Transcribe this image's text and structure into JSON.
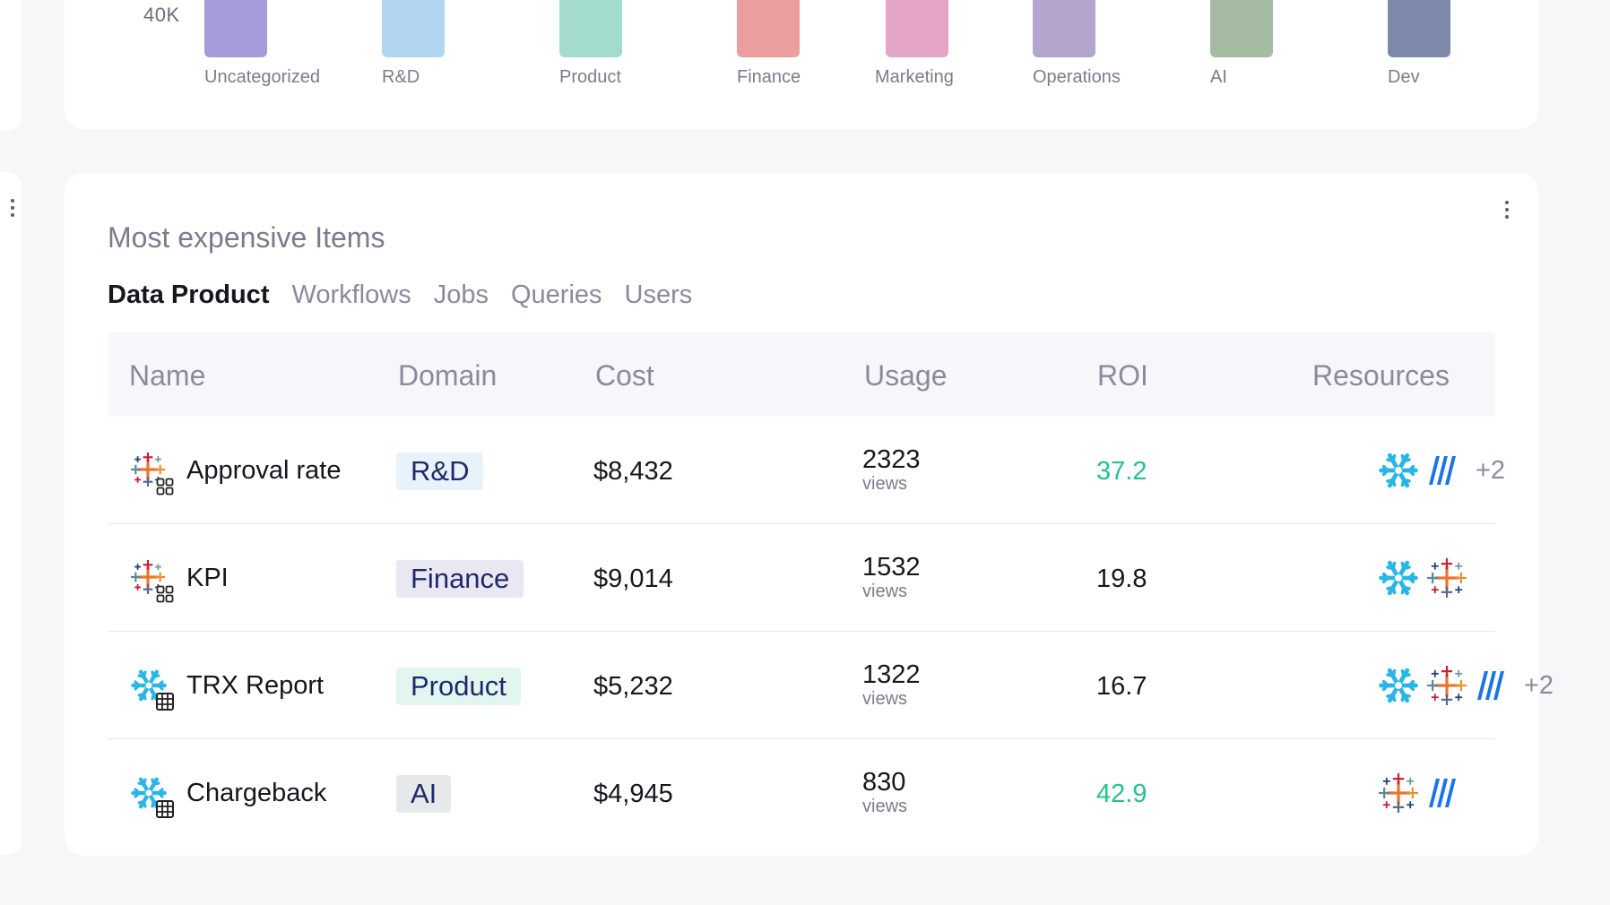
{
  "chart": {
    "y_tick": "40K",
    "bars": [
      {
        "label": "Uncategorized",
        "color": "#a39cd8"
      },
      {
        "label": "R&D",
        "color": "#b2d6f1"
      },
      {
        "label": "Product",
        "color": "#a3dccd"
      },
      {
        "label": "Finance",
        "color": "#ec9e9e"
      },
      {
        "label": "Marketing",
        "color": "#e5a5c9"
      },
      {
        "label": "Operations",
        "color": "#b3a5cb"
      },
      {
        "label": "AI",
        "color": "#a6bba4"
      },
      {
        "label": "Dev",
        "color": "#7c89ab"
      }
    ]
  },
  "card": {
    "title": "Most expensive Items",
    "tabs": [
      "Data Product",
      "Workflows",
      "Jobs",
      "Queries",
      "Users"
    ],
    "active_tab": "Data Product",
    "columns": [
      "Name",
      "Domain",
      "Cost",
      "Usage",
      "ROI",
      "Resources"
    ],
    "rows": [
      {
        "icon": "tableau-dataproduct-icon",
        "name": "Approval rate",
        "domain": "R&D",
        "domain_bg": "#e7f2fb",
        "cost": "$8,432",
        "usage": "2323",
        "usage_unit": "views",
        "roi": "37.2",
        "roi_color": "#22c38e",
        "resources": [
          "snowflake-icon",
          "looker-icon"
        ],
        "more": "+2"
      },
      {
        "icon": "tableau-dataproduct-icon",
        "name": "KPI",
        "domain": "Finance",
        "domain_bg": "#e8e7f2",
        "cost": "$9,014",
        "usage": "1532",
        "usage_unit": "views",
        "roi": "19.8",
        "roi_color": "#16161d",
        "resources": [
          "snowflake-icon",
          "tableau-icon"
        ],
        "more": ""
      },
      {
        "icon": "snowflake-table-icon",
        "name": "TRX Report",
        "domain": "Product",
        "domain_bg": "#e3f5ef",
        "cost": "$5,232",
        "usage": "1322",
        "usage_unit": "views",
        "roi": "16.7",
        "roi_color": "#16161d",
        "resources": [
          "snowflake-icon",
          "tableau-icon",
          "looker-icon"
        ],
        "more": "+2"
      },
      {
        "icon": "snowflake-table-icon",
        "name": "Chargeback",
        "domain": "AI",
        "domain_bg": "#e6e9ea",
        "cost": "$4,945",
        "usage": "830",
        "usage_unit": "views",
        "roi": "42.9",
        "roi_color": "#22c38e",
        "resources": [
          "tableau-icon",
          "looker-icon"
        ],
        "more": ""
      }
    ]
  }
}
